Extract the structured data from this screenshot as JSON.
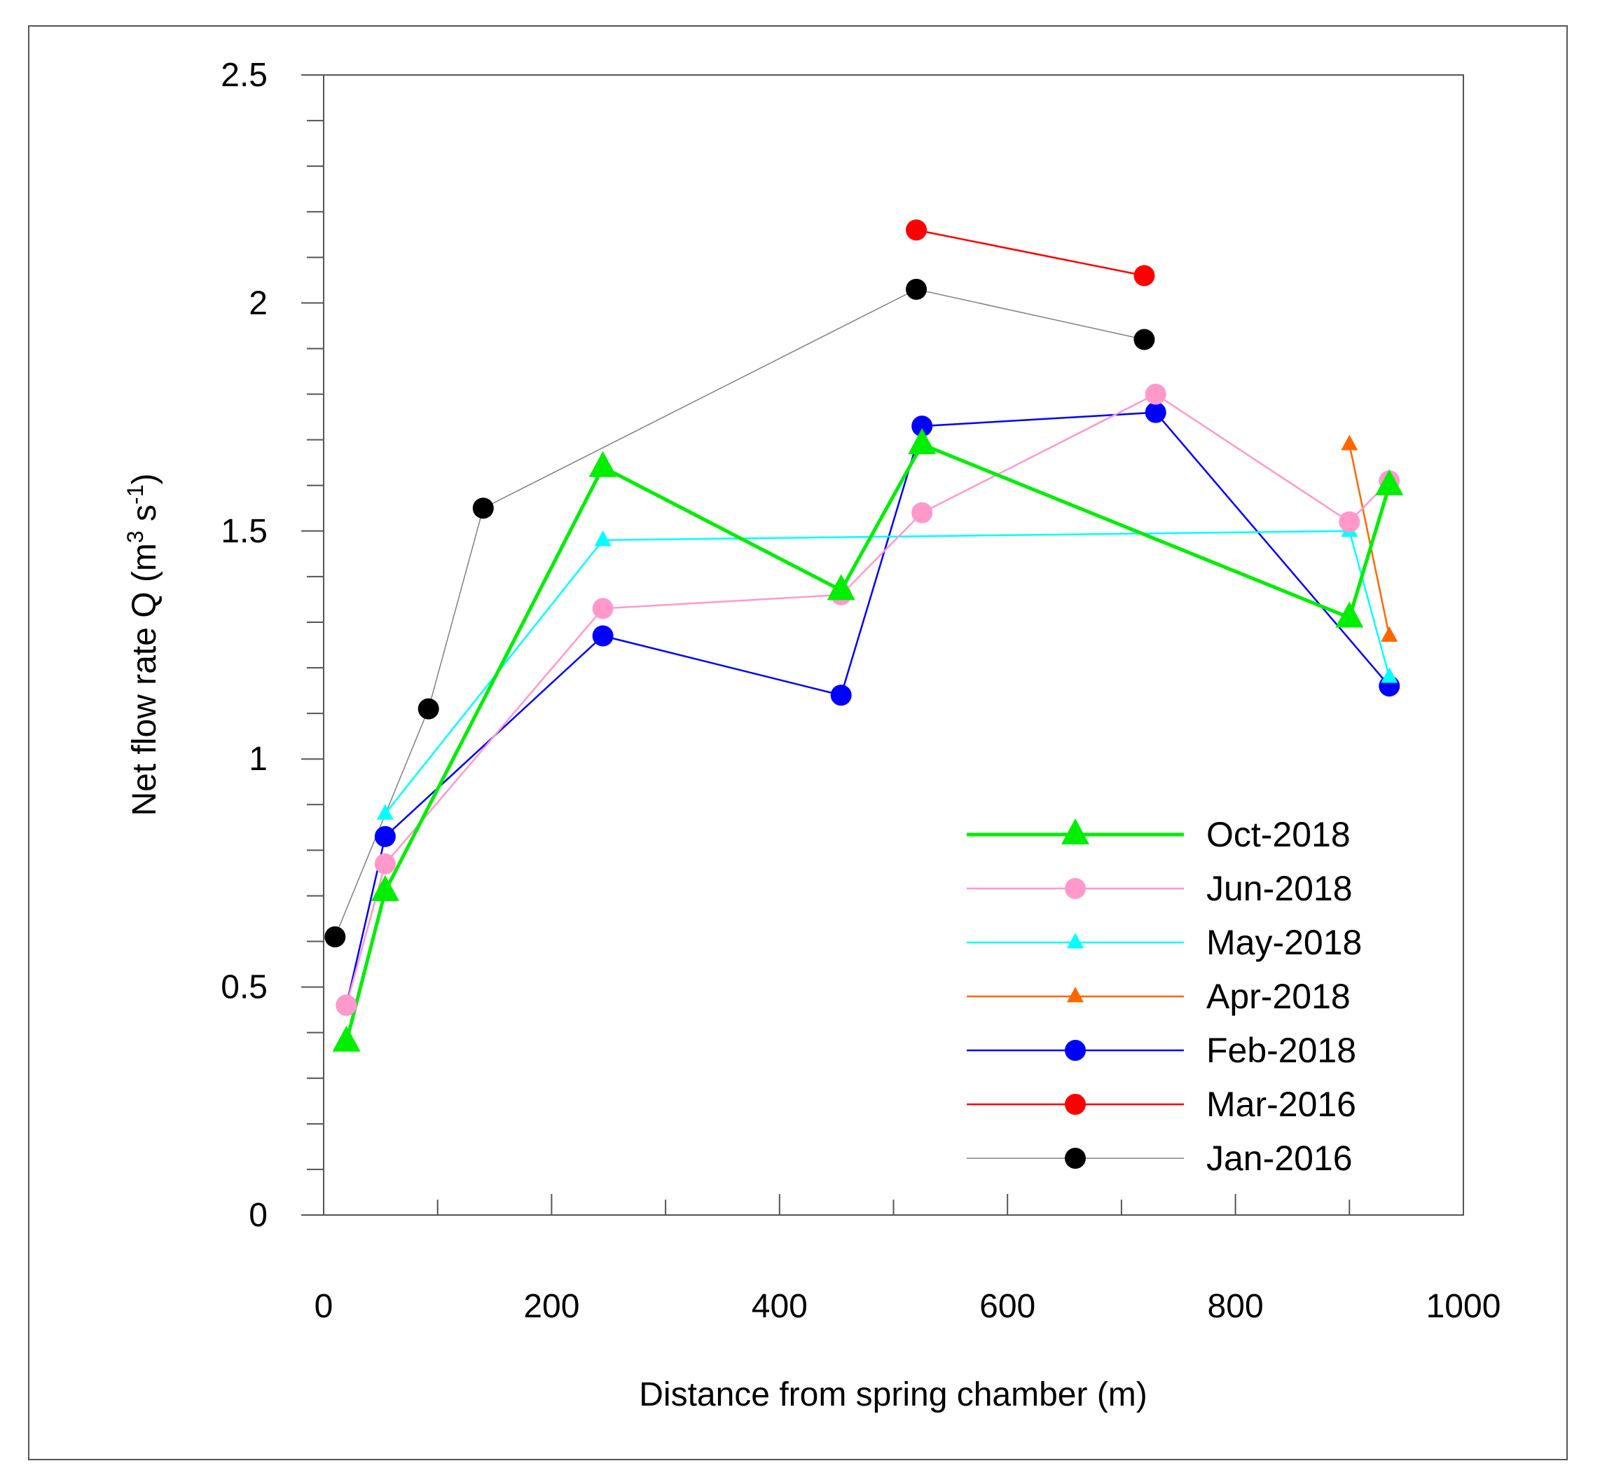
{
  "chart_data": {
    "type": "line",
    "xlabel": "Distance from spring chamber (m)",
    "ylabel_main": "Net flow rate Q (m",
    "ylabel_sup1": "3",
    "ylabel_mid": " s",
    "ylabel_sup2": "-1",
    "ylabel_end": ")",
    "xlim": [
      0,
      1000
    ],
    "ylim": [
      0,
      2.5
    ],
    "x_ticks": [
      0,
      200,
      400,
      600,
      800,
      1000
    ],
    "x_tick_labels": [
      "0",
      "200",
      "400",
      "600",
      "800",
      "1000"
    ],
    "y_ticks": [
      0,
      0.5,
      1,
      1.5,
      2,
      2.5
    ],
    "y_tick_labels": [
      "0",
      "0.5",
      "1",
      "1.5",
      "2",
      "2.5"
    ],
    "legend_position": "lower-right",
    "series": [
      {
        "name": "Jan-2016",
        "color": "#000000",
        "marker": "circle",
        "line_color": "#808080",
        "line_width": 1.5,
        "points": [
          [
            10,
            0.61
          ],
          [
            92,
            1.11
          ],
          [
            140,
            1.55
          ],
          [
            520,
            2.03
          ],
          [
            720,
            1.92
          ]
        ]
      },
      {
        "name": "Mar-2016",
        "color": "#ff0000",
        "marker": "circle",
        "line_color": "#ff0000",
        "line_width": 2.5,
        "points": [
          [
            520,
            2.16
          ],
          [
            720,
            2.06
          ]
        ]
      },
      {
        "name": "Feb-2018",
        "color": "#0000ff",
        "marker": "circle",
        "line_color": "#0000ff",
        "line_width": 2.5,
        "points": [
          [
            20,
            0.46
          ],
          [
            54,
            0.83
          ],
          [
            245,
            1.27
          ],
          [
            454,
            1.14
          ],
          [
            525,
            1.73
          ],
          [
            730,
            1.76
          ],
          [
            935,
            1.16
          ]
        ]
      },
      {
        "name": "Apr-2018",
        "color": "#ff6600",
        "marker": "triangle-small",
        "line_color": "#ff6600",
        "line_width": 2.5,
        "points": [
          [
            900,
            1.69
          ],
          [
            935,
            1.27
          ]
        ]
      },
      {
        "name": "May-2018",
        "color": "#00ffff",
        "marker": "triangle-small",
        "line_color": "#00ffff",
        "line_width": 2.5,
        "points": [
          [
            54,
            0.88
          ],
          [
            245,
            1.48
          ],
          [
            900,
            1.5
          ],
          [
            935,
            1.18
          ]
        ]
      },
      {
        "name": "Jun-2018",
        "color": "#ff99cc",
        "marker": "circle",
        "line_color": "#ff99cc",
        "line_width": 2.5,
        "points": [
          [
            20,
            0.46
          ],
          [
            54,
            0.77
          ],
          [
            245,
            1.33
          ],
          [
            454,
            1.36
          ],
          [
            525,
            1.54
          ],
          [
            730,
            1.8
          ],
          [
            900,
            1.52
          ],
          [
            935,
            1.61
          ]
        ]
      },
      {
        "name": "Oct-2018",
        "color": "#00ee00",
        "marker": "triangle-large",
        "line_color": "#00ee00",
        "line_width": 5,
        "points": [
          [
            20,
            0.38
          ],
          [
            54,
            0.71
          ],
          [
            245,
            1.64
          ],
          [
            454,
            1.37
          ],
          [
            525,
            1.69
          ],
          [
            900,
            1.31
          ],
          [
            935,
            1.6
          ]
        ]
      }
    ],
    "legend_order": [
      "Oct-2018",
      "Jun-2018",
      "May-2018",
      "Apr-2018",
      "Feb-2018",
      "Mar-2016",
      "Jan-2016"
    ]
  }
}
